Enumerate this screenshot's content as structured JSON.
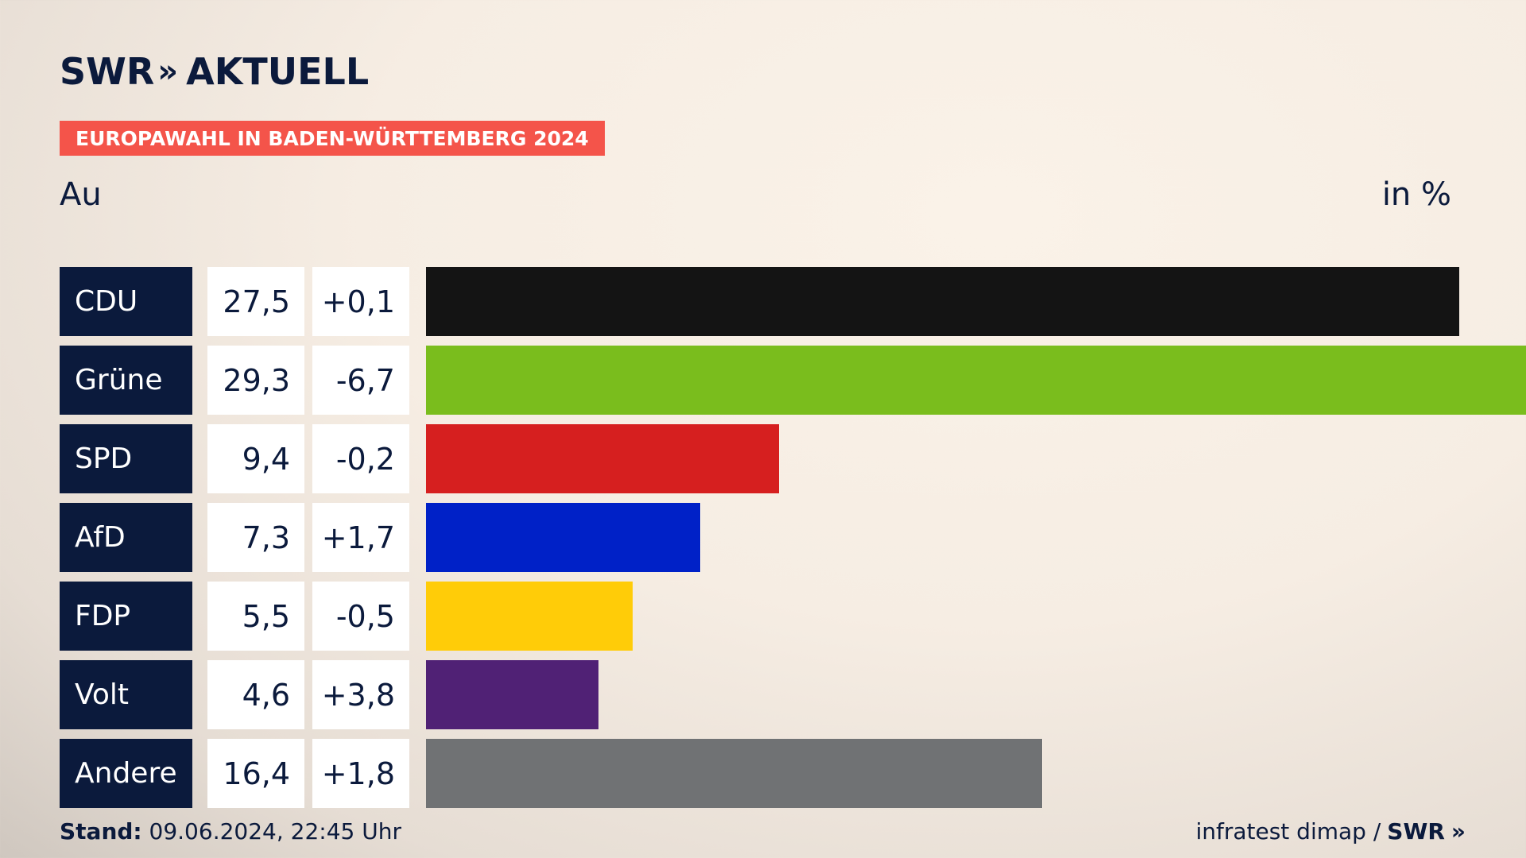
{
  "header": {
    "brand": "SWR",
    "brand_chevrons": "»",
    "brand_suffix": "AKTUELL",
    "banner": "EUROPAWAHL IN BADEN-WÜRTTEMBERG 2024",
    "subtitle": "Au",
    "unit": "in %"
  },
  "chart_data": {
    "type": "bar",
    "orientation": "horizontal",
    "categories": [
      "CDU",
      "Grüne",
      "SPD",
      "AfD",
      "FDP",
      "Volt",
      "Andere"
    ],
    "values": [
      27.5,
      29.3,
      9.4,
      7.3,
      5.5,
      4.6,
      16.4
    ],
    "value_labels": [
      "27,5",
      "29,3",
      "9,4",
      "7,3",
      "5,5",
      "4,6",
      "16,4"
    ],
    "diff_labels": [
      "+0,1",
      "-6,7",
      "-0,2",
      "+1,7",
      "-0,5",
      "+3,8",
      "+1,8"
    ],
    "colors": [
      "#141414",
      "#7abd1d",
      "#d61f1f",
      "#0021c7",
      "#ffcc08",
      "#502175",
      "#707274"
    ],
    "xlim": [
      0,
      29.3
    ]
  },
  "footer": {
    "stand_label": "Stand:",
    "stand_value": "09.06.2024, 22:45 Uhr",
    "source": "infratest dimap /",
    "source_brand": "SWR",
    "source_chevrons": "»"
  }
}
